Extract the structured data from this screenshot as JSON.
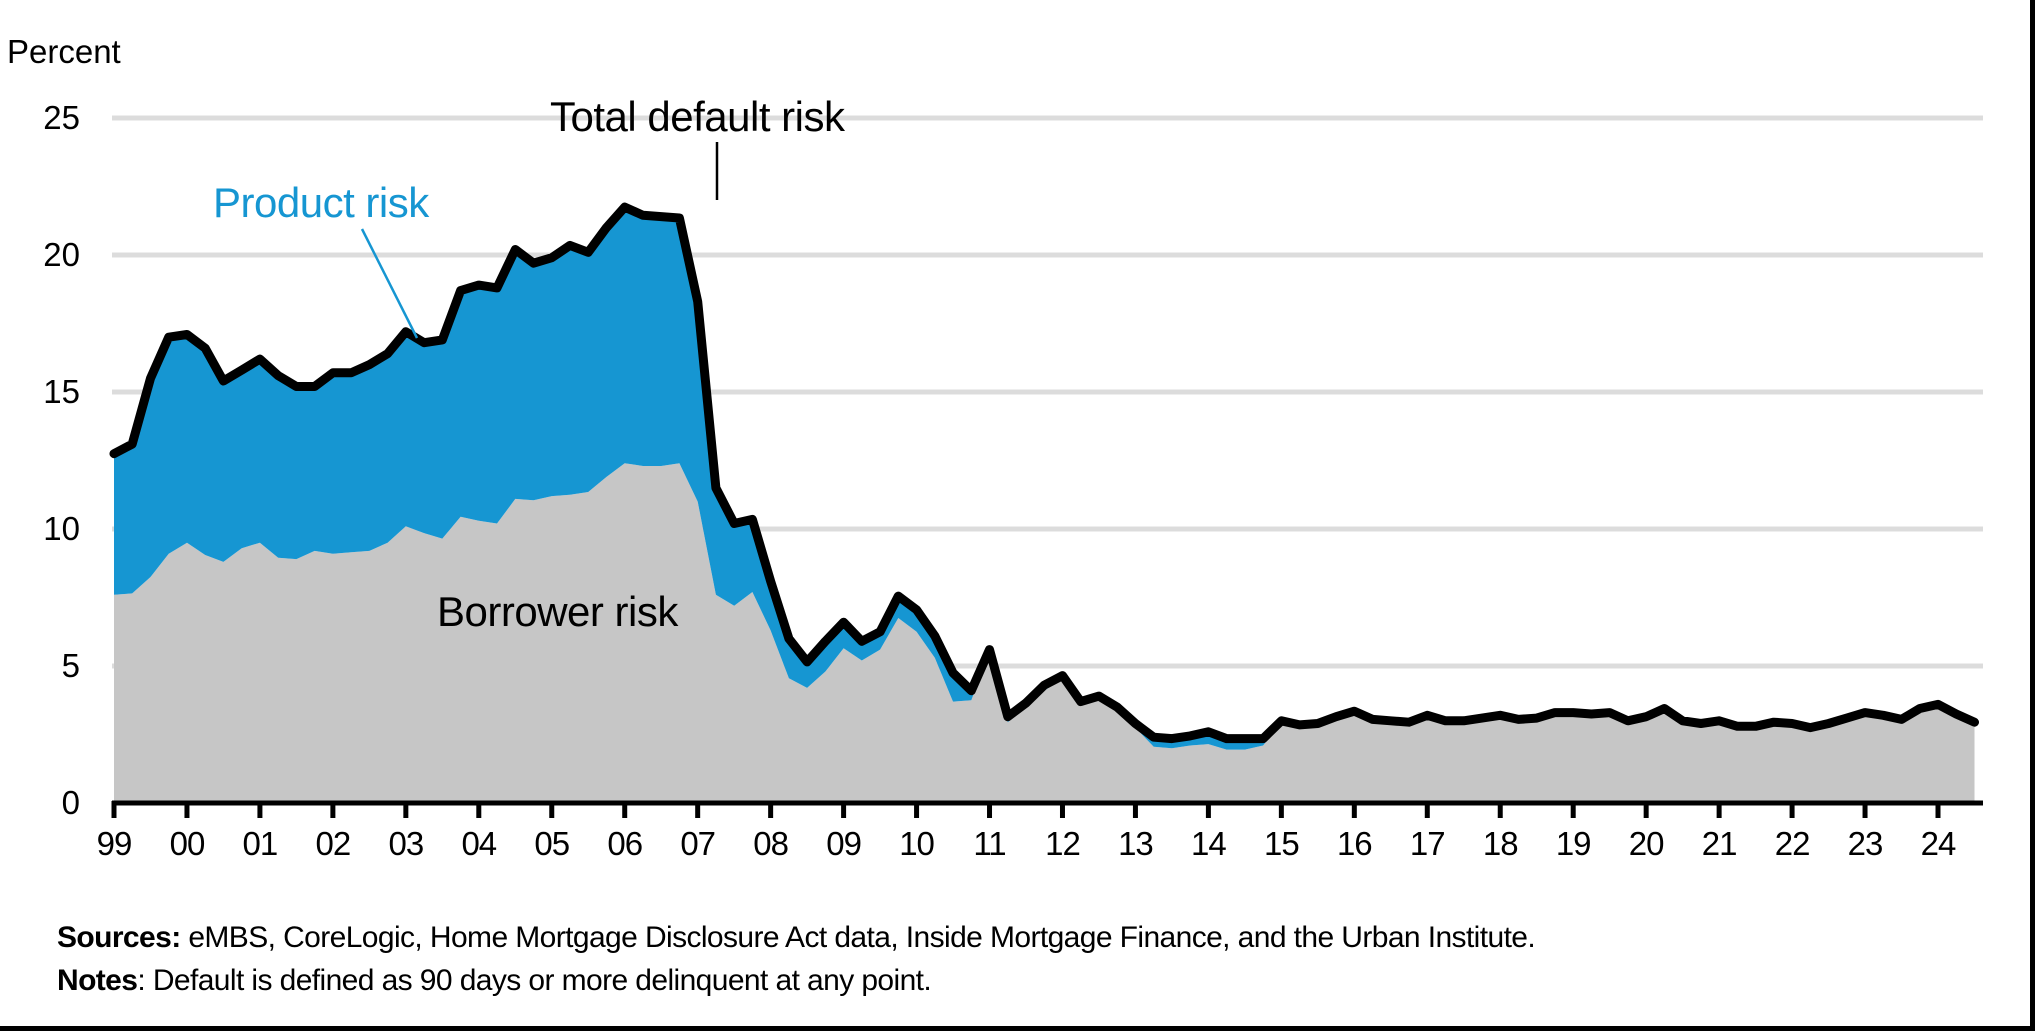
{
  "chart_data": {
    "type": "area",
    "stacked": true,
    "title": "",
    "ylabel": "Percent",
    "xlabel": "",
    "ylim": [
      0,
      25
    ],
    "yticks": [
      0,
      5,
      10,
      15,
      20,
      25
    ],
    "grid": true,
    "x_tick_labels": [
      "99",
      "00",
      "01",
      "02",
      "03",
      "04",
      "05",
      "06",
      "07",
      "08",
      "09",
      "10",
      "11",
      "12",
      "13",
      "14",
      "15",
      "16",
      "17",
      "18",
      "19",
      "20",
      "21",
      "22",
      "23",
      "24"
    ],
    "frequency": "quarterly",
    "x_start": "1999Q1",
    "x_end": "2024Q3",
    "annotations": {
      "total": "Total default risk",
      "product": "Product risk",
      "borrower": "Borrower risk"
    },
    "series": [
      {
        "name": "Borrower risk",
        "color": "#c6c6c6",
        "values": [
          7.6,
          7.65,
          8.25,
          9.1,
          9.5,
          9.05,
          8.8,
          9.3,
          9.5,
          8.95,
          8.9,
          9.2,
          9.1,
          9.15,
          9.2,
          9.5,
          10.1,
          9.85,
          9.65,
          10.45,
          10.3,
          10.2,
          11.1,
          11.05,
          11.2,
          11.25,
          11.35,
          11.9,
          12.4,
          12.3,
          12.3,
          12.4,
          11.0,
          7.6,
          7.2,
          7.7,
          6.3,
          4.55,
          4.2,
          4.8,
          5.65,
          5.2,
          5.6,
          6.75,
          6.25,
          5.3,
          3.7,
          3.75,
          5.5,
          2.95,
          3.5,
          4.1,
          4.55,
          3.6,
          3.85,
          3.45,
          2.75,
          2.05,
          2.0,
          2.1,
          2.15,
          1.95,
          1.95,
          2.1,
          2.95,
          2.82,
          2.87,
          3.12,
          3.32,
          3.02,
          2.97,
          2.92,
          3.17,
          2.97,
          2.97,
          3.07,
          3.17,
          3.02,
          3.07,
          3.27,
          3.27,
          3.22,
          3.27,
          2.97,
          3.12,
          3.42,
          2.97,
          2.87,
          2.97,
          2.77,
          2.77,
          2.92,
          2.87,
          2.72,
          2.87,
          3.07,
          3.27,
          3.17,
          3.02,
          3.42,
          3.57,
          3.22,
          2.92
        ]
      },
      {
        "name": "Product risk",
        "color": "#1696d2",
        "values": [
          5.15,
          5.45,
          7.25,
          7.9,
          7.6,
          7.55,
          6.6,
          6.5,
          6.7,
          6.65,
          6.3,
          6.0,
          6.6,
          6.55,
          6.8,
          6.9,
          7.1,
          6.95,
          7.25,
          8.25,
          8.6,
          8.6,
          9.1,
          8.65,
          8.7,
          9.1,
          8.75,
          9.1,
          9.35,
          9.15,
          9.1,
          8.95,
          7.3,
          3.9,
          3.0,
          2.65,
          1.8,
          1.45,
          0.95,
          1.1,
          0.95,
          0.7,
          0.65,
          0.8,
          0.8,
          0.8,
          1.05,
          0.35,
          0.1,
          0.2,
          0.15,
          0.2,
          0.1,
          0.1,
          0.05,
          0.05,
          0.15,
          0.35,
          0.35,
          0.35,
          0.45,
          0.4,
          0.4,
          0.25,
          0.05,
          0.03,
          0.03,
          0.03,
          0.03,
          0.03,
          0.03,
          0.03,
          0.03,
          0.03,
          0.03,
          0.03,
          0.03,
          0.03,
          0.03,
          0.03,
          0.03,
          0.03,
          0.03,
          0.03,
          0.03,
          0.03,
          0.03,
          0.03,
          0.03,
          0.03,
          0.03,
          0.03,
          0.03,
          0.03,
          0.03,
          0.03,
          0.03,
          0.03,
          0.03,
          0.03,
          0.03,
          0.03,
          0.03
        ]
      },
      {
        "name": "Total default risk",
        "color": "#000000",
        "values": [
          12.75,
          13.1,
          15.5,
          17.0,
          17.1,
          16.6,
          15.4,
          15.8,
          16.2,
          15.6,
          15.2,
          15.2,
          15.7,
          15.7,
          16.0,
          16.4,
          17.2,
          16.8,
          16.9,
          18.7,
          18.9,
          18.8,
          20.2,
          19.7,
          19.9,
          20.35,
          20.1,
          21.0,
          21.75,
          21.45,
          21.4,
          21.35,
          18.3,
          11.5,
          10.2,
          10.35,
          8.1,
          6.0,
          5.15,
          5.9,
          6.6,
          5.9,
          6.25,
          7.55,
          7.05,
          6.1,
          4.75,
          4.1,
          5.6,
          3.15,
          3.65,
          4.3,
          4.65,
          3.7,
          3.9,
          3.5,
          2.9,
          2.4,
          2.35,
          2.45,
          2.6,
          2.35,
          2.35,
          2.35,
          3.0,
          2.85,
          2.9,
          3.15,
          3.35,
          3.05,
          3.0,
          2.95,
          3.2,
          3.0,
          3.0,
          3.1,
          3.2,
          3.05,
          3.1,
          3.3,
          3.3,
          3.25,
          3.3,
          3.0,
          3.15,
          3.45,
          3.0,
          2.9,
          3.0,
          2.8,
          2.8,
          2.95,
          2.9,
          2.75,
          2.9,
          3.1,
          3.3,
          3.2,
          3.05,
          3.45,
          3.6,
          3.25,
          2.95
        ]
      }
    ]
  },
  "axis": {
    "unit_label": "Percent",
    "y_labels": [
      "25",
      "20",
      "15",
      "10",
      "5",
      "0"
    ]
  },
  "footer": {
    "sources_label": "Sources:",
    "sources_text": " eMBS, CoreLogic, Home Mortgage Disclosure Act data, Inside Mortgage Finance, and the Urban Institute.",
    "notes_label": "Notes",
    "notes_text": ": Default is defined as 90 days or more delinquent at any point."
  }
}
